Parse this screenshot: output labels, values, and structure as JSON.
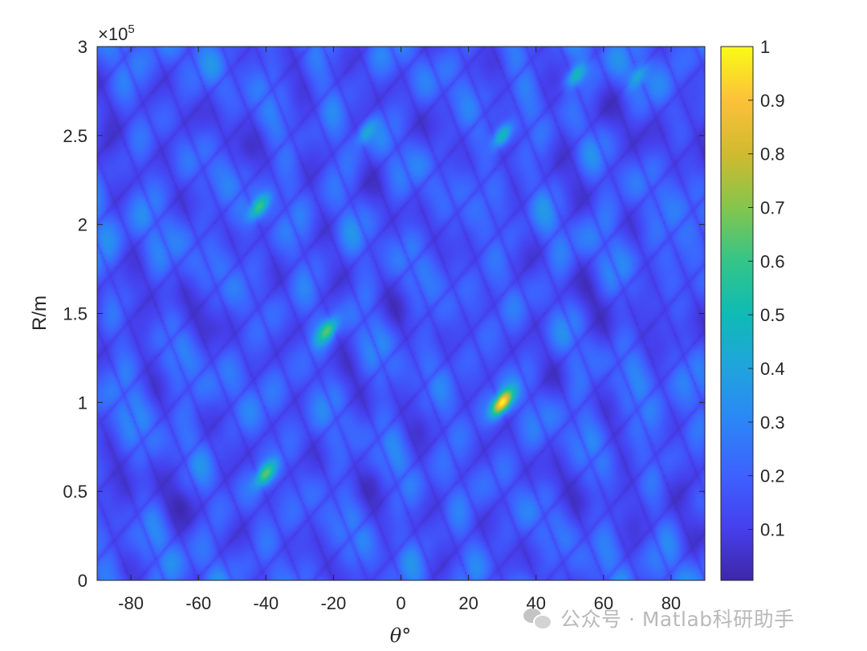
{
  "chart_data": {
    "type": "heatmap",
    "xlabel": "θ°",
    "ylabel": "R/m",
    "xlim": [
      -90,
      90
    ],
    "ylim": [
      0,
      300000
    ],
    "x_ticks": [
      "-80",
      "-60",
      "-40",
      "-20",
      "0",
      "20",
      "40",
      "60",
      "80"
    ],
    "x_tick_values": [
      -80,
      -60,
      -40,
      -20,
      0,
      20,
      40,
      60,
      80
    ],
    "y_ticks": [
      "0",
      "0.5",
      "1",
      "1.5",
      "2",
      "2.5",
      "3"
    ],
    "y_tick_values": [
      0,
      50000,
      100000,
      150000,
      200000,
      250000,
      300000
    ],
    "y_exponent": "×10^5",
    "colormap": "parula",
    "colorbar": {
      "ticks": [
        "0.1",
        "0.2",
        "0.3",
        "0.4",
        "0.5",
        "0.6",
        "0.7",
        "0.8",
        "0.9",
        "1"
      ],
      "tick_values": [
        0.1,
        0.2,
        0.3,
        0.4,
        0.5,
        0.6,
        0.7,
        0.8,
        0.9,
        1.0
      ],
      "range": [
        0.005,
        1.0
      ]
    },
    "grid": false,
    "peaks": [
      {
        "theta": 30,
        "range": 100000,
        "value": 1.0
      },
      {
        "theta": -22,
        "range": 140000,
        "value": 0.65
      },
      {
        "theta": -40,
        "range": 60000,
        "value": 0.65
      },
      {
        "theta": -42,
        "range": 210000,
        "value": 0.6
      },
      {
        "theta": 30,
        "range": 250000,
        "value": 0.5
      },
      {
        "theta": 52,
        "range": 284000,
        "value": 0.5
      },
      {
        "theta": 70,
        "range": 283000,
        "value": 0.42
      },
      {
        "theta": -10,
        "range": 252000,
        "value": 0.42
      }
    ]
  },
  "watermark": {
    "icon": "wechat-icon",
    "text": "公众号 · Matlab科研助手"
  }
}
